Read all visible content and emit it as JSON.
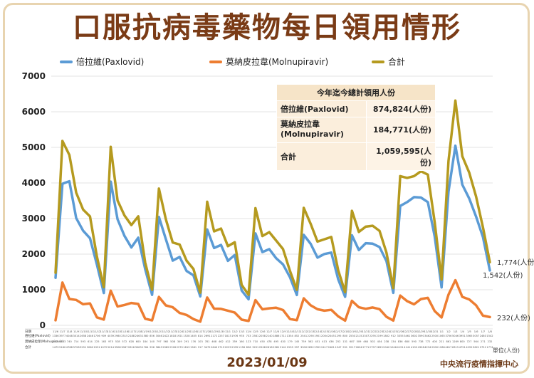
{
  "title": "口服抗病毒藥物每日領用情形",
  "legend": [
    {
      "name": "倍拉維(Paxlovid)",
      "color": "#5b9bd5"
    },
    {
      "name": "莫納皮拉韋(Molnupiravir)",
      "color": "#ed7d31"
    },
    {
      "name": "合計",
      "color": "#b59a1f"
    }
  ],
  "summary": {
    "header": "今年迄今總計領用人份",
    "rows": [
      {
        "label": "倍拉維(Paxlovid)",
        "value": "874,824(人份)"
      },
      {
        "label": "莫納皮拉韋(Molnupiravir)",
        "value": "184,771(人份)"
      },
      {
        "label": "合計",
        "value": "1,059,595(人份)"
      }
    ]
  },
  "end_labels": {
    "total": "1,774(人份)",
    "paxlovid": "1,542(人份)",
    "molnupiravir": "232(人份)"
  },
  "table_row_labels": [
    "日期",
    "倍拉維(Paxlovid)",
    "莫納皮拉韋(Molnupiravir)",
    "合計"
  ],
  "unit_note": "單位(人份)",
  "date": "2023/01/09",
  "source": "中央流行疫情指揮中心",
  "chart_data": {
    "type": "line",
    "title": "口服抗病毒藥物每日領用情形",
    "xlabel": "",
    "ylabel": "",
    "ylim": [
      0,
      7000
    ],
    "yticks": [
      0,
      1000,
      2000,
      3000,
      4000,
      5000,
      6000,
      7000
    ],
    "categories": [
      "11/6",
      "11/7",
      "11/8",
      "11/9",
      "11/10",
      "11/11",
      "11/12",
      "11/13",
      "11/14",
      "11/15",
      "11/16",
      "11/17",
      "11/18",
      "11/19",
      "11/20",
      "11/21",
      "11/22",
      "11/23",
      "11/24",
      "11/25",
      "11/26",
      "11/27",
      "11/28",
      "11/29",
      "11/30",
      "12/1",
      "12/2",
      "12/3",
      "12/4",
      "12/5",
      "12/6",
      "12/7",
      "12/8",
      "12/9",
      "12/10",
      "12/11",
      "12/12",
      "12/13",
      "12/14",
      "12/15",
      "12/16",
      "12/17",
      "12/18",
      "12/19",
      "12/20",
      "12/21",
      "12/22",
      "12/23",
      "12/24",
      "12/25",
      "12/26",
      "12/27",
      "12/28",
      "12/29",
      "12/30",
      "12/31",
      "1/1",
      "1/2",
      "1/3",
      "1/4",
      "1/5",
      "1/6",
      "1/7",
      "1/8"
    ],
    "series": [
      {
        "name": "倍拉維(Paxlovid)",
        "color": "#5b9bd5",
        "values": [
          1336,
          3977,
          4048,
          3014,
          2658,
          2446,
          1706,
          909,
          4039,
          2980,
          2515,
          2188,
          2463,
          1580,
          856,
          3046,
          2422,
          1818,
          1921,
          1528,
          1405,
          814,
          2691,
          2172,
          2257,
          1813,
          1976,
          978,
          733,
          2581,
          2058,
          2140,
          1886,
          1711,
          1354,
          852,
          2541,
          2290,
          1901,
          2004,
          2045,
          1295,
          800,
          2530,
          2115,
          2307,
          2295,
          2199,
          1802,
          912,
          3355,
          3461,
          3602,
          3590,
          3462,
          2500,
          1065,
          3756,
          5046,
          3951,
          3565,
          3057,
          2480,
          1542
        ]
      },
      {
        "name": "莫納皮拉韋(Molnupiravir)",
        "color": "#ed7d31",
        "values": [
          143,
          1203,
          740,
          714,
          593,
          614,
          225,
          163,
          975,
          528,
          572,
          628,
          600,
          184,
          140,
          797,
          560,
          508,
          349,
          291,
          176,
          103,
          781,
          468,
          462,
          412,
          359,
          160,
          123,
          710,
          450,
          478,
          495,
          430,
          179,
          145,
          759,
          562,
          451,
          413,
          436,
          252,
          131,
          687,
          509,
          464,
          502,
          454,
          238,
          134,
          836,
          680,
          590,
          738,
          772,
          400,
          221,
          861,
          1269,
          800,
          727,
          564,
          271,
          232
        ]
      },
      {
        "name": "合計",
        "color": "#b59a1f",
        "values": [
          1479,
          5180,
          4788,
          3728,
          3251,
          3060,
          1931,
          1072,
          5014,
          3508,
          3087,
          2816,
          3063,
          1764,
          996,
          3843,
          2982,
          2326,
          2270,
          1819,
          1581,
          917,
          3472,
          2640,
          2719,
          2225,
          2335,
          1138,
          856,
          3291,
          2508,
          2618,
          2381,
          2141,
          1533,
          997,
          3300,
          2852,
          2352,
          2417,
          2481,
          1547,
          931,
          3217,
          2624,
          2771,
          2797,
          2653,
          2040,
          1046,
          4191,
          4141,
          4192,
          4328,
          4234,
          2900,
          1286,
          4617,
          6315,
          4751,
          4292,
          3621,
          2751,
          1774
        ]
      }
    ]
  }
}
